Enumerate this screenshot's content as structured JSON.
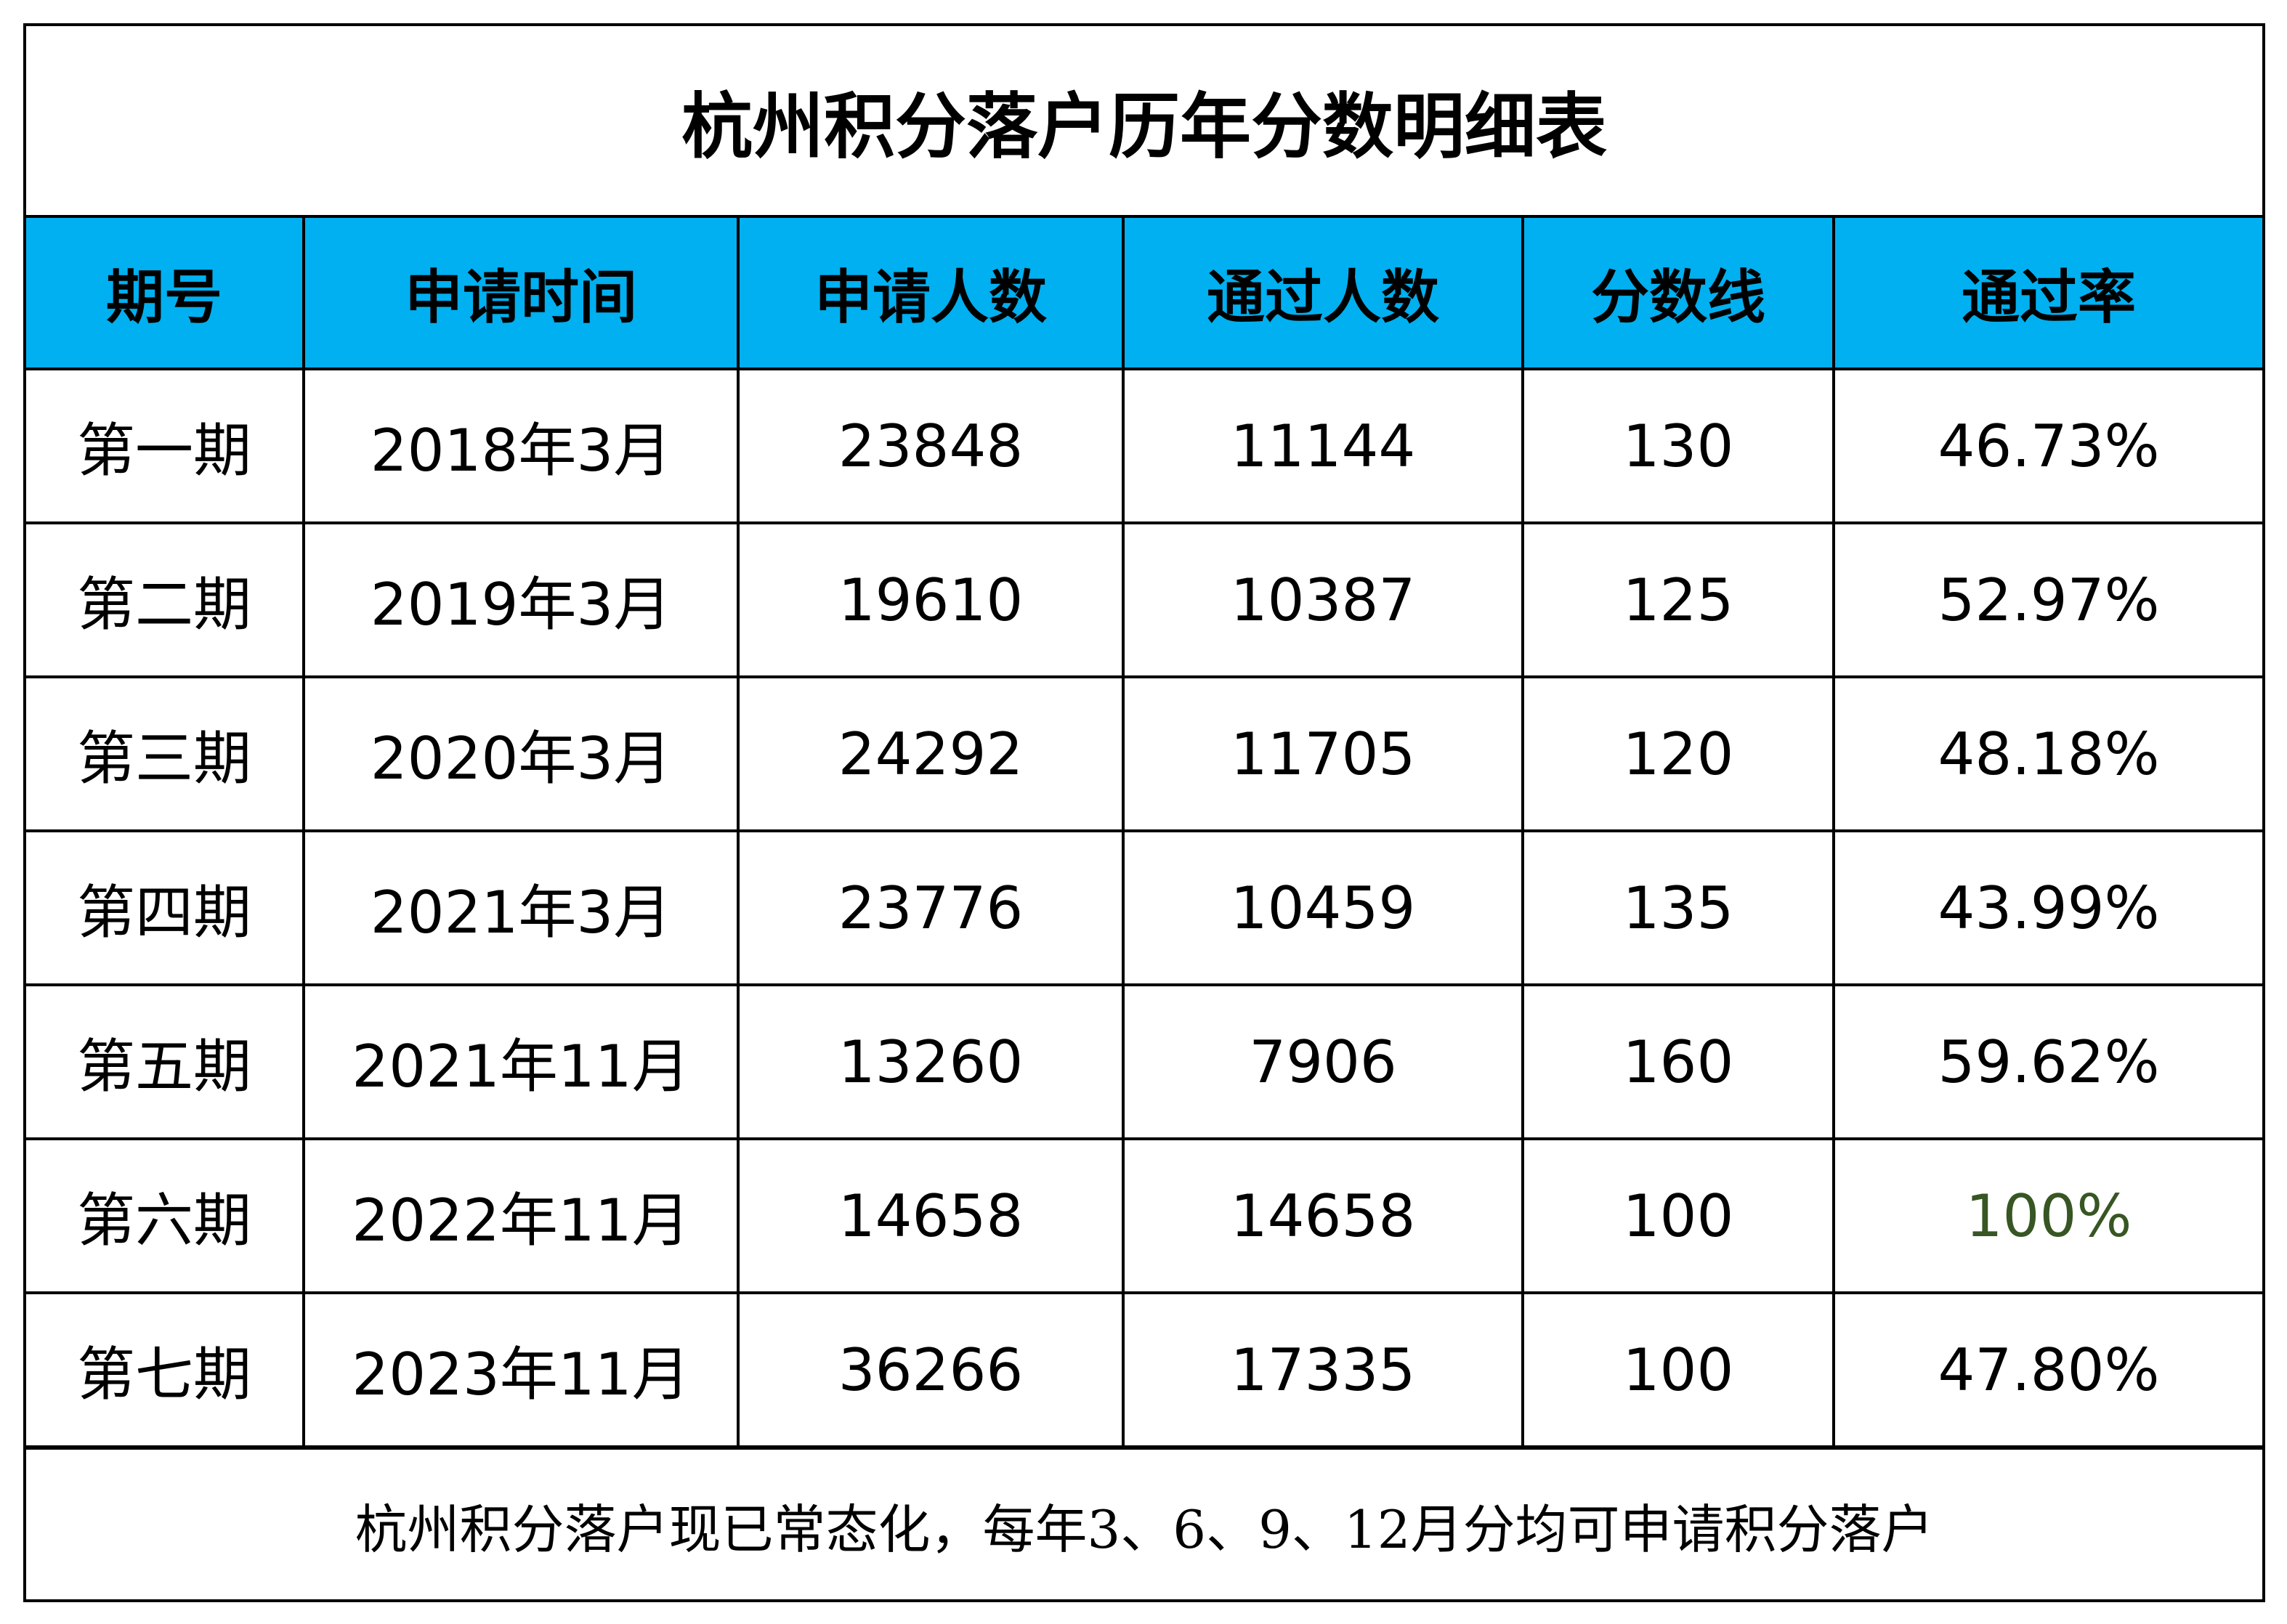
{
  "title": "杭州积分落户历年分数明细表",
  "colors": {
    "header_bg": "#00b0f0",
    "score_line": "#ff0000",
    "rate": "#ed7d31",
    "rate_full": "#375623"
  },
  "headers": [
    "期号",
    "申请时间",
    "申请人数",
    "通过人数",
    "分数线",
    "通过率"
  ],
  "rows": [
    {
      "period": "第一期",
      "time": "2018年3月",
      "applicants": "23848",
      "passed": "11144",
      "score": "130",
      "rate": "46.73%"
    },
    {
      "period": "第二期",
      "time": "2019年3月",
      "applicants": "19610",
      "passed": "10387",
      "score": "125",
      "rate": "52.97%"
    },
    {
      "period": "第三期",
      "time": "2020年3月",
      "applicants": "24292",
      "passed": "11705",
      "score": "120",
      "rate": "48.18%"
    },
    {
      "period": "第四期",
      "time": "2021年3月",
      "applicants": "23776",
      "passed": "10459",
      "score": "135",
      "rate": "43.99%"
    },
    {
      "period": "第五期",
      "time": "2021年11月",
      "applicants": "13260",
      "passed": "7906",
      "score": "160",
      "rate": "59.62%"
    },
    {
      "period": "第六期",
      "time": "2022年11月",
      "applicants": "14658",
      "passed": "14658",
      "score": "100",
      "rate": "100%"
    },
    {
      "period": "第七期",
      "time": "2023年11月",
      "applicants": "36266",
      "passed": "17335",
      "score": "100",
      "rate": "47.80%"
    }
  ],
  "footer": "杭州积分落户现已常态化，每年3、6、9、12月分均可申请积分落户"
}
